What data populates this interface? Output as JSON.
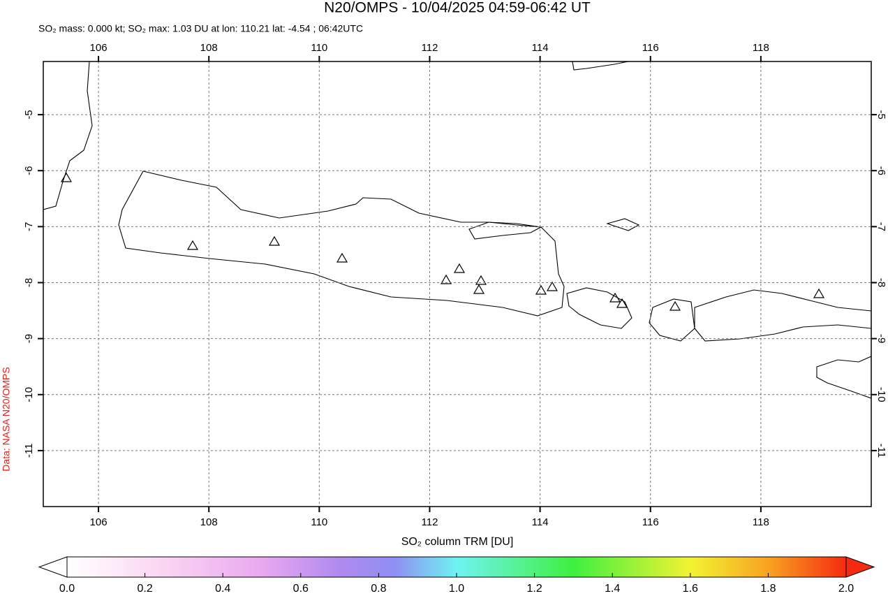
{
  "title": "N20/OMPS - 10/04/2025 04:59-06:42 UT",
  "subtitle": "SO₂ mass: 0.000 kt; SO₂ max: 1.03 DU at lon: 110.21 lat: -4.54 ; 06:42UTC",
  "credit": "Data: NASA N20/OMPS",
  "map": {
    "lon_range": [
      105,
      120
    ],
    "lat_range": [
      -12,
      -4.05
    ],
    "lon_ticks": [
      106,
      108,
      110,
      112,
      114,
      116,
      118
    ],
    "lat_ticks": [
      -5,
      -6,
      -7,
      -8,
      -9,
      -10,
      -11
    ]
  },
  "colorbar": {
    "label": "SO₂ column TRM [DU]",
    "range": [
      0,
      2
    ],
    "ticks": [
      {
        "value": 0,
        "label": "0.0"
      },
      {
        "value": 0.2,
        "label": "0.2"
      },
      {
        "value": 0.4,
        "label": "0.4"
      },
      {
        "value": 0.6,
        "label": "0.6"
      },
      {
        "value": 0.8,
        "label": "0.8"
      },
      {
        "value": 1,
        "label": "1.0"
      },
      {
        "value": 1.2,
        "label": "1.2"
      },
      {
        "value": 1.4,
        "label": "1.4"
      },
      {
        "value": 1.6,
        "label": "1.6"
      },
      {
        "value": 1.8,
        "label": "1.8"
      },
      {
        "value": 2,
        "label": "2.0"
      }
    ]
  }
}
